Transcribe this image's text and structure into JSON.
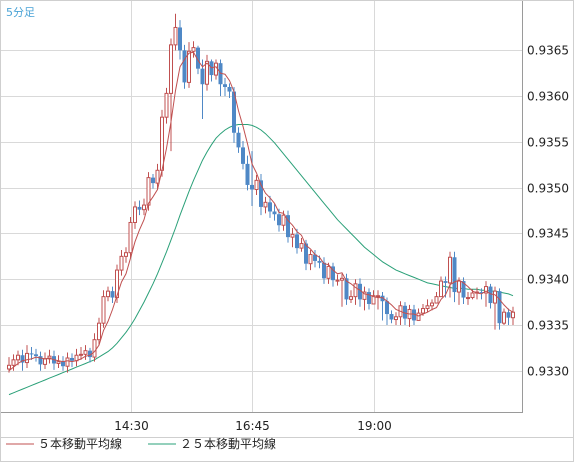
{
  "chart_data": {
    "type": "candlestick",
    "period_label": "5分足",
    "y_ticks": [
      "0.9365",
      "0.9360",
      "0.9355",
      "0.9350",
      "0.9345",
      "0.9340",
      "0.9335",
      "0.9330"
    ],
    "y_tick_values": [
      0.9365,
      0.936,
      0.9355,
      0.935,
      0.9345,
      0.934,
      0.9335,
      0.933
    ],
    "ylim": [
      0.93255,
      0.93705
    ],
    "x_ticks": [
      "14:30",
      "16:45",
      "19:00"
    ],
    "x_tick_indices": [
      27,
      54,
      81
    ],
    "grid": true,
    "legend": [
      {
        "name": "５本移動平均線",
        "color": "#c05050"
      },
      {
        "name": "２５本移動平均線",
        "color": "#2aa078"
      }
    ],
    "up_color": "#c05050",
    "down_color": "#4f88c6",
    "candles": {
      "open": [
        0.93302,
        0.93306,
        0.93312,
        0.93317,
        0.93309,
        0.93319,
        0.93318,
        0.93316,
        0.93307,
        0.93313,
        0.93316,
        0.93308,
        0.9331,
        0.93305,
        0.93314,
        0.93311,
        0.93317,
        0.93318,
        0.93322,
        0.93315,
        0.93334,
        0.93352,
        0.93381,
        0.93387,
        0.9338,
        0.9341,
        0.93425,
        0.93429,
        0.93462,
        0.93479,
        0.93476,
        0.93481,
        0.93511,
        0.93505,
        0.93519,
        0.93577,
        0.93603,
        0.93656,
        0.93675,
        0.9365,
        0.93615,
        0.93649,
        0.93653,
        0.9363,
        0.93613,
        0.93638,
        0.93623,
        0.93636,
        0.93613,
        0.9361,
        0.93605,
        0.9356,
        0.93544,
        0.93526,
        0.93503,
        0.93498,
        0.93508,
        0.93479,
        0.93484,
        0.93474,
        0.93471,
        0.93459,
        0.9347,
        0.93446,
        0.93449,
        0.93434,
        0.93439,
        0.93417,
        0.93427,
        0.9342,
        0.93418,
        0.93401,
        0.93414,
        0.93399,
        0.93399,
        0.93401,
        0.93378,
        0.93381,
        0.93395,
        0.93378,
        0.93386,
        0.93373,
        0.93382,
        0.93382,
        0.93376,
        0.93362,
        0.93356,
        0.93359,
        0.93371,
        0.93357,
        0.93367,
        0.93355,
        0.93363,
        0.93368,
        0.93371,
        0.93374,
        0.93381,
        0.93398,
        0.93396,
        0.93424,
        0.93386,
        0.93398,
        0.9338,
        0.9338,
        0.93385,
        0.93386,
        0.93385,
        0.93392,
        0.93374,
        0.93387,
        0.93352,
        0.93364,
        0.93358
      ],
      "close": [
        0.93306,
        0.93312,
        0.93317,
        0.93309,
        0.93319,
        0.93318,
        0.93316,
        0.93307,
        0.93313,
        0.93316,
        0.93308,
        0.9331,
        0.93305,
        0.93314,
        0.93311,
        0.93317,
        0.93318,
        0.93322,
        0.93315,
        0.93334,
        0.93352,
        0.93381,
        0.93387,
        0.9338,
        0.9341,
        0.93425,
        0.93429,
        0.93462,
        0.93479,
        0.93476,
        0.93481,
        0.93511,
        0.93505,
        0.93519,
        0.93577,
        0.93603,
        0.93656,
        0.93675,
        0.9365,
        0.93615,
        0.93649,
        0.93653,
        0.9363,
        0.93613,
        0.93638,
        0.93623,
        0.93636,
        0.93613,
        0.9361,
        0.93605,
        0.9356,
        0.93544,
        0.93526,
        0.93503,
        0.93498,
        0.93508,
        0.93479,
        0.93484,
        0.93474,
        0.93471,
        0.93459,
        0.9347,
        0.93446,
        0.93449,
        0.93434,
        0.93439,
        0.93417,
        0.93427,
        0.9342,
        0.93418,
        0.93401,
        0.93414,
        0.93399,
        0.93399,
        0.93401,
        0.93378,
        0.93381,
        0.93395,
        0.93378,
        0.93386,
        0.93373,
        0.93382,
        0.93382,
        0.93376,
        0.93362,
        0.93356,
        0.93359,
        0.93371,
        0.93357,
        0.93367,
        0.93355,
        0.93363,
        0.93368,
        0.93371,
        0.93374,
        0.93381,
        0.93398,
        0.93396,
        0.93424,
        0.93386,
        0.93398,
        0.9338,
        0.9338,
        0.93385,
        0.93386,
        0.93385,
        0.93392,
        0.93374,
        0.93387,
        0.93352,
        0.93364,
        0.93358,
        0.93364
      ],
      "high": [
        0.93315,
        0.93318,
        0.93322,
        0.93323,
        0.93328,
        0.93326,
        0.93324,
        0.93321,
        0.9332,
        0.93323,
        0.93322,
        0.93317,
        0.93316,
        0.9332,
        0.93319,
        0.93324,
        0.93326,
        0.93328,
        0.93325,
        0.93341,
        0.93358,
        0.93388,
        0.93392,
        0.93392,
        0.93416,
        0.93432,
        0.93435,
        0.93468,
        0.93485,
        0.93486,
        0.93488,
        0.93517,
        0.93515,
        0.93526,
        0.93585,
        0.93609,
        0.93663,
        0.9369,
        0.93683,
        0.93656,
        0.93659,
        0.9366,
        0.93655,
        0.9364,
        0.93645,
        0.9364,
        0.9364,
        0.9364,
        0.9362,
        0.93614,
        0.9361,
        0.93566,
        0.93551,
        0.93535,
        0.9354,
        0.93514,
        0.93515,
        0.9349,
        0.93491,
        0.93482,
        0.93477,
        0.93475,
        0.93475,
        0.93456,
        0.93455,
        0.93445,
        0.93443,
        0.93432,
        0.93432,
        0.93426,
        0.93424,
        0.93418,
        0.93418,
        0.93405,
        0.93406,
        0.93406,
        0.93388,
        0.934,
        0.93401,
        0.93392,
        0.9339,
        0.93388,
        0.93388,
        0.93386,
        0.9338,
        0.93366,
        0.93364,
        0.93376,
        0.93375,
        0.93372,
        0.93372,
        0.93368,
        0.93373,
        0.93378,
        0.93378,
        0.93386,
        0.93403,
        0.93403,
        0.9343,
        0.9343,
        0.93402,
        0.93402,
        0.93386,
        0.93389,
        0.93391,
        0.9339,
        0.93398,
        0.93395,
        0.93392,
        0.9339,
        0.93368,
        0.93368,
        0.9337
      ],
      "low": [
        0.93298,
        0.933,
        0.93306,
        0.933,
        0.93303,
        0.93312,
        0.9331,
        0.933,
        0.93302,
        0.93308,
        0.93301,
        0.93303,
        0.933,
        0.93298,
        0.93304,
        0.93305,
        0.93312,
        0.93312,
        0.93309,
        0.9331,
        0.93328,
        0.93347,
        0.93376,
        0.93374,
        0.93374,
        0.93404,
        0.93418,
        0.93423,
        0.93455,
        0.9347,
        0.9347,
        0.93475,
        0.93499,
        0.93498,
        0.93512,
        0.9357,
        0.9354,
        0.9365,
        0.9364,
        0.93608,
        0.93609,
        0.93642,
        0.93624,
        0.93575,
        0.93606,
        0.93616,
        0.93618,
        0.936,
        0.936,
        0.93598,
        0.93549,
        0.93538,
        0.9352,
        0.93497,
        0.9348,
        0.93492,
        0.9347,
        0.93472,
        0.93467,
        0.93464,
        0.93452,
        0.93453,
        0.9344,
        0.93435,
        0.93428,
        0.9343,
        0.9341,
        0.9341,
        0.93413,
        0.93412,
        0.93395,
        0.93395,
        0.93392,
        0.93393,
        0.9337,
        0.93372,
        0.93374,
        0.93372,
        0.9337,
        0.93366,
        0.93367,
        0.93375,
        0.93367,
        0.93355,
        0.9335,
        0.93352,
        0.9335,
        0.9335,
        0.9335,
        0.93348,
        0.9335,
        0.93355,
        0.9336,
        0.93364,
        0.93366,
        0.93374,
        0.93385,
        0.9338,
        0.9338,
        0.93375,
        0.93372,
        0.93373,
        0.93372,
        0.93378,
        0.93378,
        0.93378,
        0.9337,
        0.93368,
        0.93345,
        0.93345,
        0.9335,
        0.9335,
        0.9335
      ]
    },
    "ma5": [
      0.933,
      0.93304,
      0.93308,
      0.93311,
      0.93312,
      0.93313,
      0.93315,
      0.93314,
      0.93313,
      0.93314,
      0.93312,
      0.93311,
      0.9331,
      0.93311,
      0.9331,
      0.93311,
      0.93313,
      0.93316,
      0.93317,
      0.93321,
      0.93328,
      0.93344,
      0.93354,
      0.93367,
      0.93382,
      0.93397,
      0.93406,
      0.93423,
      0.93441,
      0.93454,
      0.93465,
      0.93483,
      0.9349,
      0.93498,
      0.93519,
      0.93543,
      0.93572,
      0.93606,
      0.93632,
      0.9364,
      0.93647,
      0.93648,
      0.93639,
      0.93632,
      0.93636,
      0.93631,
      0.93632,
      0.93625,
      0.93624,
      0.93617,
      0.93605,
      0.93584,
      0.93567,
      0.93548,
      0.93526,
      0.93516,
      0.93503,
      0.93494,
      0.93489,
      0.93483,
      0.93473,
      0.93472,
      0.93464,
      0.93459,
      0.93452,
      0.93448,
      0.93437,
      0.93433,
      0.93427,
      0.93424,
      0.93417,
      0.93416,
      0.9341,
      0.93406,
      0.93407,
      0.93398,
      0.93395,
      0.93391,
      0.93388,
      0.93384,
      0.93383,
      0.93381,
      0.9338,
      0.9338,
      0.93376,
      0.93372,
      0.93367,
      0.93365,
      0.93363,
      0.93362,
      0.93362,
      0.9336,
      0.93362,
      0.93364,
      0.93367,
      0.93369,
      0.93378,
      0.93383,
      0.93394,
      0.93397,
      0.93399,
      0.93396,
      0.93392,
      0.93387,
      0.93385,
      0.93384,
      0.93387,
      0.93384,
      0.93383,
      0.93378,
      0.93372,
      0.93367,
      0.93364
    ],
    "ma25": [
      0.93274,
      0.93276,
      0.93278,
      0.9328,
      0.93282,
      0.93284,
      0.93286,
      0.93288,
      0.9329,
      0.93292,
      0.93294,
      0.93296,
      0.93298,
      0.933,
      0.93302,
      0.93304,
      0.93306,
      0.93308,
      0.9331,
      0.93312,
      0.93315,
      0.93318,
      0.93321,
      0.93325,
      0.9333,
      0.93336,
      0.93342,
      0.93349,
      0.93357,
      0.93366,
      0.93375,
      0.93385,
      0.93395,
      0.93406,
      0.93418,
      0.9343,
      0.93443,
      0.93456,
      0.9347,
      0.93483,
      0.93496,
      0.93508,
      0.93519,
      0.9353,
      0.93539,
      0.93547,
      0.93554,
      0.93559,
      0.93563,
      0.93566,
      0.93568,
      0.93569,
      0.93569,
      0.93569,
      0.93568,
      0.93566,
      0.93563,
      0.93559,
      0.93554,
      0.93549,
      0.93543,
      0.93537,
      0.93531,
      0.93525,
      0.93519,
      0.93513,
      0.93507,
      0.93501,
      0.93495,
      0.93489,
      0.93483,
      0.93477,
      0.93471,
      0.93465,
      0.9346,
      0.93455,
      0.9345,
      0.93445,
      0.9344,
      0.93435,
      0.93431,
      0.93427,
      0.93423,
      0.93419,
      0.93416,
      0.93413,
      0.9341,
      0.93408,
      0.93406,
      0.93404,
      0.93402,
      0.934,
      0.93398,
      0.93396,
      0.93395,
      0.93394,
      0.93393,
      0.93392,
      0.93391,
      0.9339,
      0.9339,
      0.9339,
      0.93389,
      0.93389,
      0.93389,
      0.93388,
      0.93388,
      0.93387,
      0.93387,
      0.93386,
      0.93385,
      0.93384,
      0.93382
    ]
  }
}
